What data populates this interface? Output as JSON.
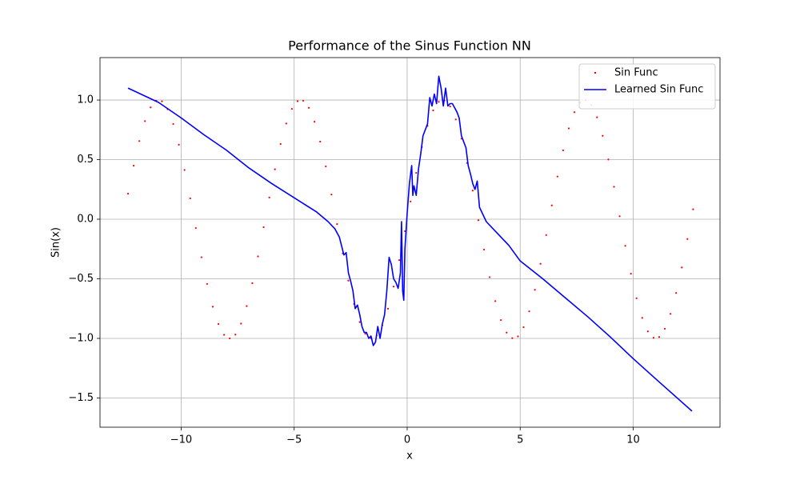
{
  "chart_data": {
    "type": "scatter",
    "title": "Performance of the Sinus Function NN",
    "xlabel": "x",
    "ylabel": "Sin(x)",
    "xlim": [
      -13.59,
      13.84
    ],
    "ylim": [
      -1.745,
      1.356
    ],
    "xticks": [
      {
        "value": -10,
        "label": "−10"
      },
      {
        "value": -5,
        "label": "−5"
      },
      0,
      5,
      10
    ],
    "yticks": [
      {
        "value": -1.5,
        "label": "−1.5"
      },
      {
        "value": -1.0,
        "label": "−1.0"
      },
      {
        "value": -0.5,
        "label": "−0.5"
      },
      {
        "value": 0,
        "label": "0.0"
      },
      0.5,
      {
        "value": 1.0,
        "label": "1.0"
      }
    ],
    "grid": true,
    "legend": "upper right",
    "series": [
      {
        "name": "Sin Func",
        "type": "scatter",
        "color": "#ff0000",
        "x": [
          -12.35,
          -12.1,
          -11.85,
          -11.6,
          -11.35,
          -11.1,
          -10.85,
          -10.6,
          -10.35,
          -10.1,
          -9.85,
          -9.6,
          -9.35,
          -9.1,
          -8.85,
          -8.6,
          -8.35,
          -8.1,
          -7.85,
          -7.6,
          -7.35,
          -7.1,
          -6.85,
          -6.6,
          -6.35,
          -6.1,
          -5.85,
          -5.6,
          -5.35,
          -5.1,
          -4.85,
          -4.6,
          -4.35,
          -4.1,
          -3.85,
          -3.6,
          -3.35,
          -3.1,
          -2.85,
          -2.6,
          -2.35,
          -2.1,
          -1.85,
          -1.6,
          -1.35,
          -1.1,
          -0.85,
          -0.6,
          -0.35,
          -0.1,
          0.15,
          0.4,
          0.65,
          0.9,
          1.15,
          1.4,
          1.65,
          1.9,
          2.15,
          2.4,
          2.65,
          2.9,
          3.15,
          3.4,
          3.65,
          3.9,
          4.15,
          4.4,
          4.65,
          4.9,
          5.15,
          5.4,
          5.65,
          5.9,
          6.15,
          6.4,
          6.65,
          6.9,
          7.15,
          7.4,
          7.65,
          7.9,
          8.15,
          8.4,
          8.65,
          8.9,
          9.15,
          9.4,
          9.65,
          9.9,
          10.15,
          10.4,
          10.65,
          10.9,
          11.15,
          11.4,
          11.65,
          11.9,
          12.15,
          12.4,
          12.65
        ],
        "values": [
          0.214,
          0.449,
          0.656,
          0.823,
          0.938,
          0.994,
          0.989,
          0.923,
          0.799,
          0.625,
          0.413,
          0.175,
          -0.074,
          -0.319,
          -0.543,
          -0.734,
          -0.879,
          -0.97,
          -1.0,
          -0.968,
          -0.876,
          -0.729,
          -0.537,
          -0.312,
          -0.067,
          0.182,
          0.419,
          0.631,
          0.803,
          0.926,
          0.99,
          0.994,
          0.935,
          0.818,
          0.651,
          0.443,
          0.207,
          -0.041,
          -0.287,
          -0.515,
          -0.711,
          -0.863,
          -0.961,
          -1.0,
          -0.976,
          -0.891,
          -0.751,
          -0.565,
          -0.343,
          -0.1,
          0.149,
          0.389,
          0.605,
          0.783,
          0.913,
          0.985,
          0.997,
          0.946,
          0.837,
          0.676,
          0.472,
          0.24,
          -0.008,
          -0.255,
          -0.486,
          -0.687,
          -0.846,
          -0.951,
          -0.998,
          -0.983,
          -0.906,
          -0.773,
          -0.592,
          -0.374,
          -0.133,
          0.116,
          0.358,
          0.578,
          0.762,
          0.898,
          0.979,
          0.999,
          0.957,
          0.855,
          0.7,
          0.501,
          0.272,
          0.025,
          -0.223,
          -0.457,
          -0.663,
          -0.828,
          -0.941,
          -0.995,
          -0.988,
          -0.919,
          -0.794,
          -0.619,
          -0.405,
          -0.166,
          0.083
        ]
      },
      {
        "name": "Learned Sin Func",
        "type": "line",
        "color": "#0000ff",
        "x": [
          -12.35,
          -11,
          -10,
          -9,
          -8,
          -7,
          -6,
          -5,
          -4,
          -3.5,
          -3.2,
          -3,
          -2.8,
          -2.7,
          -2.6,
          -2.5,
          -2.4,
          -2.3,
          -2.2,
          -2.1,
          -2.0,
          -1.9,
          -1.8,
          -1.7,
          -1.6,
          -1.5,
          -1.4,
          -1.3,
          -1.2,
          -1.1,
          -1.0,
          -0.9,
          -0.8,
          -0.7,
          -0.6,
          -0.5,
          -0.4,
          -0.3,
          -0.25,
          -0.2,
          -0.15,
          -0.1,
          0,
          0.1,
          0.2,
          0.25,
          0.3,
          0.4,
          0.5,
          0.6,
          0.7,
          0.8,
          0.9,
          1.0,
          1.1,
          1.2,
          1.3,
          1.4,
          1.5,
          1.6,
          1.7,
          1.8,
          1.9,
          2.0,
          2.2,
          2.3,
          2.4,
          2.5,
          2.6,
          2.7,
          2.8,
          2.9,
          3.0,
          3.1,
          3.2,
          3.5,
          4,
          4.5,
          5,
          6,
          7,
          8,
          9,
          10,
          11,
          12.6
        ],
        "values": [
          1.1,
          0.98,
          0.85,
          0.71,
          0.58,
          0.43,
          0.3,
          0.18,
          0.06,
          -0.02,
          -0.08,
          -0.15,
          -0.3,
          -0.28,
          -0.45,
          -0.52,
          -0.6,
          -0.75,
          -0.72,
          -0.8,
          -0.9,
          -0.95,
          -0.95,
          -1.0,
          -0.98,
          -1.06,
          -1.03,
          -0.9,
          -1.0,
          -0.88,
          -0.8,
          -0.6,
          -0.32,
          -0.38,
          -0.5,
          -0.53,
          -0.58,
          -0.45,
          -0.02,
          -0.6,
          -0.68,
          -0.25,
          0.05,
          0.3,
          0.45,
          0.2,
          0.28,
          0.2,
          0.42,
          0.55,
          0.7,
          0.75,
          0.8,
          1.02,
          0.95,
          1.05,
          0.97,
          1.2,
          1.1,
          0.95,
          1.1,
          0.95,
          0.97,
          0.97,
          0.9,
          0.85,
          0.7,
          0.65,
          0.6,
          0.45,
          0.38,
          0.3,
          0.25,
          0.32,
          0.1,
          -0.02,
          -0.12,
          -0.22,
          -0.35,
          -0.5,
          -0.66,
          -0.82,
          -0.99,
          -1.17,
          -1.34,
          -1.61
        ]
      }
    ]
  }
}
